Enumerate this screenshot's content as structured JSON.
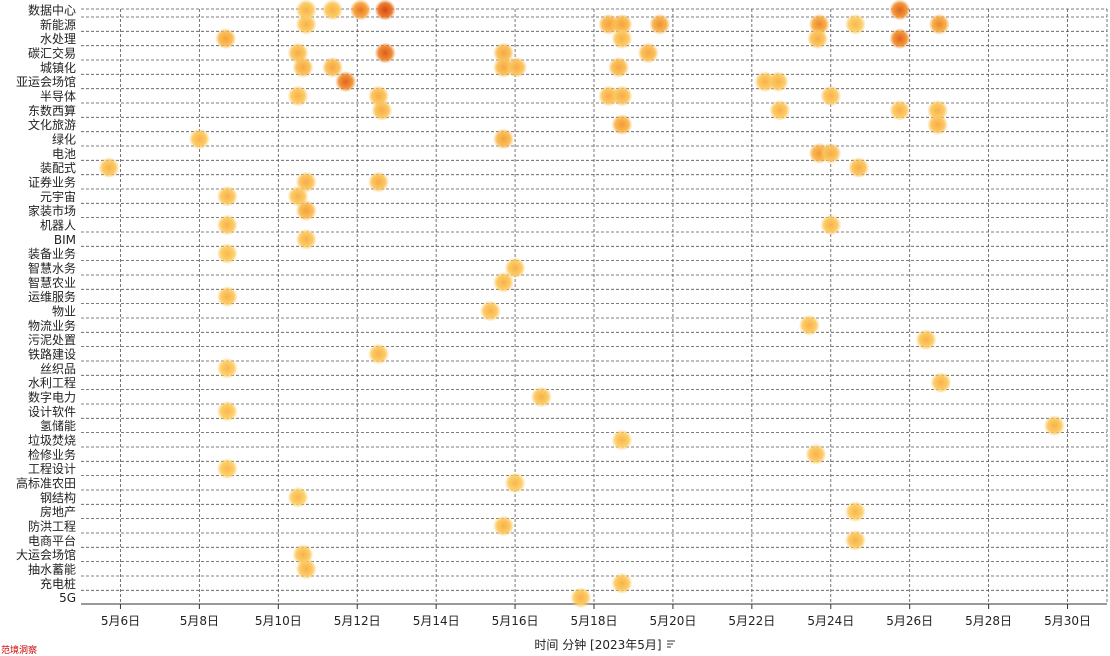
{
  "watermark": "范境洞察",
  "chart_data": {
    "type": "scatter",
    "xlabel": "时间 分钟 [2023年5月]",
    "x_ticks": [
      "5月6日",
      "5月8日",
      "5月10日",
      "5月12日",
      "5月14日",
      "5月16日",
      "5月18日",
      "5月20日",
      "5月22日",
      "5月24日",
      "5月26日",
      "5月28日",
      "5月30日"
    ],
    "x_tick_dates": [
      "2023-05-06",
      "2023-05-08",
      "2023-05-10",
      "2023-05-12",
      "2023-05-14",
      "2023-05-16",
      "2023-05-18",
      "2023-05-20",
      "2023-05-22",
      "2023-05-24",
      "2023-05-26",
      "2023-05-28",
      "2023-05-30"
    ],
    "xlim": [
      "2023-05-05",
      "2023-05-31"
    ],
    "categories": [
      "数据中心",
      "新能源",
      "水处理",
      "碳汇交易",
      "城镇化",
      "亚运会场馆",
      "半导体",
      "东数西算",
      "文化旅游",
      "绿化",
      "电池",
      "装配式",
      "证券业务",
      "元宇宙",
      "家装市场",
      "机器人",
      "BIM",
      "装备业务",
      "智慧水务",
      "智慧农业",
      "运维服务",
      "物业",
      "物流业务",
      "污泥处置",
      "铁路建设",
      "丝织品",
      "水利工程",
      "数字电力",
      "设计软件",
      "氢储能",
      "垃圾焚烧",
      "检修业务",
      "工程设计",
      "高标准农田",
      "钢结构",
      "房地产",
      "防洪工程",
      "电商平台",
      "大运会场馆",
      "抽水蓄能",
      "充电桩",
      "5G"
    ],
    "grid": true,
    "color_scale": [
      "#fdd36a",
      "#f6a23a",
      "#d9480f"
    ],
    "points": [
      {
        "category": "数据中心",
        "x": "2023-05-10 17:00",
        "intensity": 0.35
      },
      {
        "category": "数据中心",
        "x": "2023-05-11 09:00",
        "intensity": 0.35
      },
      {
        "category": "数据中心",
        "x": "2023-05-12 02:00",
        "intensity": 0.75
      },
      {
        "category": "数据中心",
        "x": "2023-05-12 17:00",
        "intensity": 1.0
      },
      {
        "category": "数据中心",
        "x": "2023-05-25 18:00",
        "intensity": 0.85
      },
      {
        "category": "新能源",
        "x": "2023-05-10 17:00",
        "intensity": 0.35
      },
      {
        "category": "新能源",
        "x": "2023-05-18 09:00",
        "intensity": 0.5
      },
      {
        "category": "新能源",
        "x": "2023-05-18 17:00",
        "intensity": 0.5
      },
      {
        "category": "新能源",
        "x": "2023-05-19 16:00",
        "intensity": 0.6
      },
      {
        "category": "新能源",
        "x": "2023-05-23 17:00",
        "intensity": 0.65
      },
      {
        "category": "新能源",
        "x": "2023-05-24 15:00",
        "intensity": 0.3
      },
      {
        "category": "新能源",
        "x": "2023-05-26 18:00",
        "intensity": 0.65
      },
      {
        "category": "水处理",
        "x": "2023-05-08 16:00",
        "intensity": 0.5
      },
      {
        "category": "水处理",
        "x": "2023-05-18 17:00",
        "intensity": 0.35
      },
      {
        "category": "水处理",
        "x": "2023-05-23 16:00",
        "intensity": 0.4
      },
      {
        "category": "水处理",
        "x": "2023-05-25 18:00",
        "intensity": 0.85
      },
      {
        "category": "碳汇交易",
        "x": "2023-05-10 12:00",
        "intensity": 0.4
      },
      {
        "category": "碳汇交易",
        "x": "2023-05-12 17:00",
        "intensity": 0.9
      },
      {
        "category": "碳汇交易",
        "x": "2023-05-15 17:00",
        "intensity": 0.45
      },
      {
        "category": "碳汇交易",
        "x": "2023-05-19 09:00",
        "intensity": 0.45
      },
      {
        "category": "城镇化",
        "x": "2023-05-10 15:00",
        "intensity": 0.45
      },
      {
        "category": "城镇化",
        "x": "2023-05-11 09:00",
        "intensity": 0.45
      },
      {
        "category": "城镇化",
        "x": "2023-05-15 17:00",
        "intensity": 0.45
      },
      {
        "category": "城镇化",
        "x": "2023-05-16 01:00",
        "intensity": 0.4
      },
      {
        "category": "城镇化",
        "x": "2023-05-18 15:00",
        "intensity": 0.45
      },
      {
        "category": "亚运会场馆",
        "x": "2023-05-11 17:00",
        "intensity": 0.85
      },
      {
        "category": "亚运会场馆",
        "x": "2023-05-22 08:00",
        "intensity": 0.35
      },
      {
        "category": "亚运会场馆",
        "x": "2023-05-22 16:00",
        "intensity": 0.35
      },
      {
        "category": "半导体",
        "x": "2023-05-10 12:00",
        "intensity": 0.35
      },
      {
        "category": "半导体",
        "x": "2023-05-12 13:00",
        "intensity": 0.4
      },
      {
        "category": "半导体",
        "x": "2023-05-18 09:00",
        "intensity": 0.4
      },
      {
        "category": "半导体",
        "x": "2023-05-18 17:00",
        "intensity": 0.4
      },
      {
        "category": "半导体",
        "x": "2023-05-24 00:00",
        "intensity": 0.35
      },
      {
        "category": "东数西算",
        "x": "2023-05-12 15:00",
        "intensity": 0.4
      },
      {
        "category": "东数西算",
        "x": "2023-05-22 17:00",
        "intensity": 0.35
      },
      {
        "category": "东数西算",
        "x": "2023-05-25 18:00",
        "intensity": 0.35
      },
      {
        "category": "东数西算",
        "x": "2023-05-26 17:00",
        "intensity": 0.35
      },
      {
        "category": "文化旅游",
        "x": "2023-05-18 17:00",
        "intensity": 0.55
      },
      {
        "category": "文化旅游",
        "x": "2023-05-26 17:00",
        "intensity": 0.4
      },
      {
        "category": "绿化",
        "x": "2023-05-08 00:00",
        "intensity": 0.35
      },
      {
        "category": "绿化",
        "x": "2023-05-15 17:00",
        "intensity": 0.5
      },
      {
        "category": "电池",
        "x": "2023-05-23 17:00",
        "intensity": 0.55
      },
      {
        "category": "电池",
        "x": "2023-05-24 00:00",
        "intensity": 0.4
      },
      {
        "category": "装配式",
        "x": "2023-05-05 17:00",
        "intensity": 0.35
      },
      {
        "category": "装配式",
        "x": "2023-05-24 17:00",
        "intensity": 0.4
      },
      {
        "category": "证券业务",
        "x": "2023-05-10 17:00",
        "intensity": 0.4
      },
      {
        "category": "证券业务",
        "x": "2023-05-12 13:00",
        "intensity": 0.4
      },
      {
        "category": "元宇宙",
        "x": "2023-05-08 17:00",
        "intensity": 0.35
      },
      {
        "category": "元宇宙",
        "x": "2023-05-10 12:00",
        "intensity": 0.35
      },
      {
        "category": "家装市场",
        "x": "2023-05-10 17:00",
        "intensity": 0.5
      },
      {
        "category": "机器人",
        "x": "2023-05-08 17:00",
        "intensity": 0.35
      },
      {
        "category": "机器人",
        "x": "2023-05-24 00:00",
        "intensity": 0.35
      },
      {
        "category": "BIM",
        "x": "2023-05-10 17:00",
        "intensity": 0.35
      },
      {
        "category": "装备业务",
        "x": "2023-05-08 17:00",
        "intensity": 0.3
      },
      {
        "category": "智慧水务",
        "x": "2023-05-16 00:00",
        "intensity": 0.35
      },
      {
        "category": "智慧农业",
        "x": "2023-05-15 17:00",
        "intensity": 0.35
      },
      {
        "category": "运维服务",
        "x": "2023-05-08 17:00",
        "intensity": 0.35
      },
      {
        "category": "物业",
        "x": "2023-05-15 09:00",
        "intensity": 0.35
      },
      {
        "category": "物流业务",
        "x": "2023-05-23 11:00",
        "intensity": 0.35
      },
      {
        "category": "污泥处置",
        "x": "2023-05-26 10:00",
        "intensity": 0.35
      },
      {
        "category": "铁路建设",
        "x": "2023-05-12 13:00",
        "intensity": 0.35
      },
      {
        "category": "丝织品",
        "x": "2023-05-08 17:00",
        "intensity": 0.3
      },
      {
        "category": "水利工程",
        "x": "2023-05-26 19:00",
        "intensity": 0.35
      },
      {
        "category": "数字电力",
        "x": "2023-05-16 16:00",
        "intensity": 0.35
      },
      {
        "category": "设计软件",
        "x": "2023-05-08 17:00",
        "intensity": 0.3
      },
      {
        "category": "氢储能",
        "x": "2023-05-29 16:00",
        "intensity": 0.35
      },
      {
        "category": "垃圾焚烧",
        "x": "2023-05-18 17:00",
        "intensity": 0.3
      },
      {
        "category": "检修业务",
        "x": "2023-05-23 15:00",
        "intensity": 0.35
      },
      {
        "category": "工程设计",
        "x": "2023-05-08 17:00",
        "intensity": 0.3
      },
      {
        "category": "高标准农田",
        "x": "2023-05-16 00:00",
        "intensity": 0.3
      },
      {
        "category": "钢结构",
        "x": "2023-05-10 12:00",
        "intensity": 0.3
      },
      {
        "category": "房地产",
        "x": "2023-05-24 15:00",
        "intensity": 0.3
      },
      {
        "category": "防洪工程",
        "x": "2023-05-15 17:00",
        "intensity": 0.35
      },
      {
        "category": "电商平台",
        "x": "2023-05-24 15:00",
        "intensity": 0.35
      },
      {
        "category": "大运会场馆",
        "x": "2023-05-10 15:00",
        "intensity": 0.35
      },
      {
        "category": "抽水蓄能",
        "x": "2023-05-10 17:00",
        "intensity": 0.35
      },
      {
        "category": "充电桩",
        "x": "2023-05-18 17:00",
        "intensity": 0.35
      },
      {
        "category": "5G",
        "x": "2023-05-17 16:00",
        "intensity": 0.35
      }
    ]
  }
}
